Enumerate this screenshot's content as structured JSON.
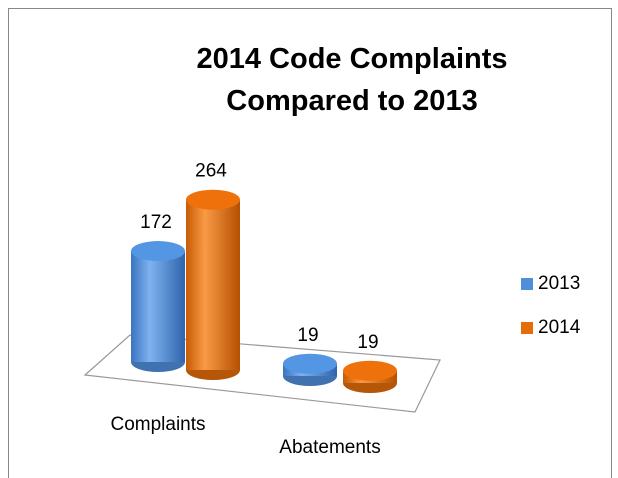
{
  "chart_data": {
    "type": "bar3d",
    "title": "2014 Code Complaints Compared to 2013",
    "categories": [
      "Complaints",
      "Abatements"
    ],
    "series": [
      {
        "name": "2013",
        "color": "#4f8fd9",
        "values": [
          172,
          19
        ]
      },
      {
        "name": "2014",
        "color": "#e46c0a",
        "values": [
          264,
          19
        ]
      }
    ],
    "legend": "right"
  }
}
